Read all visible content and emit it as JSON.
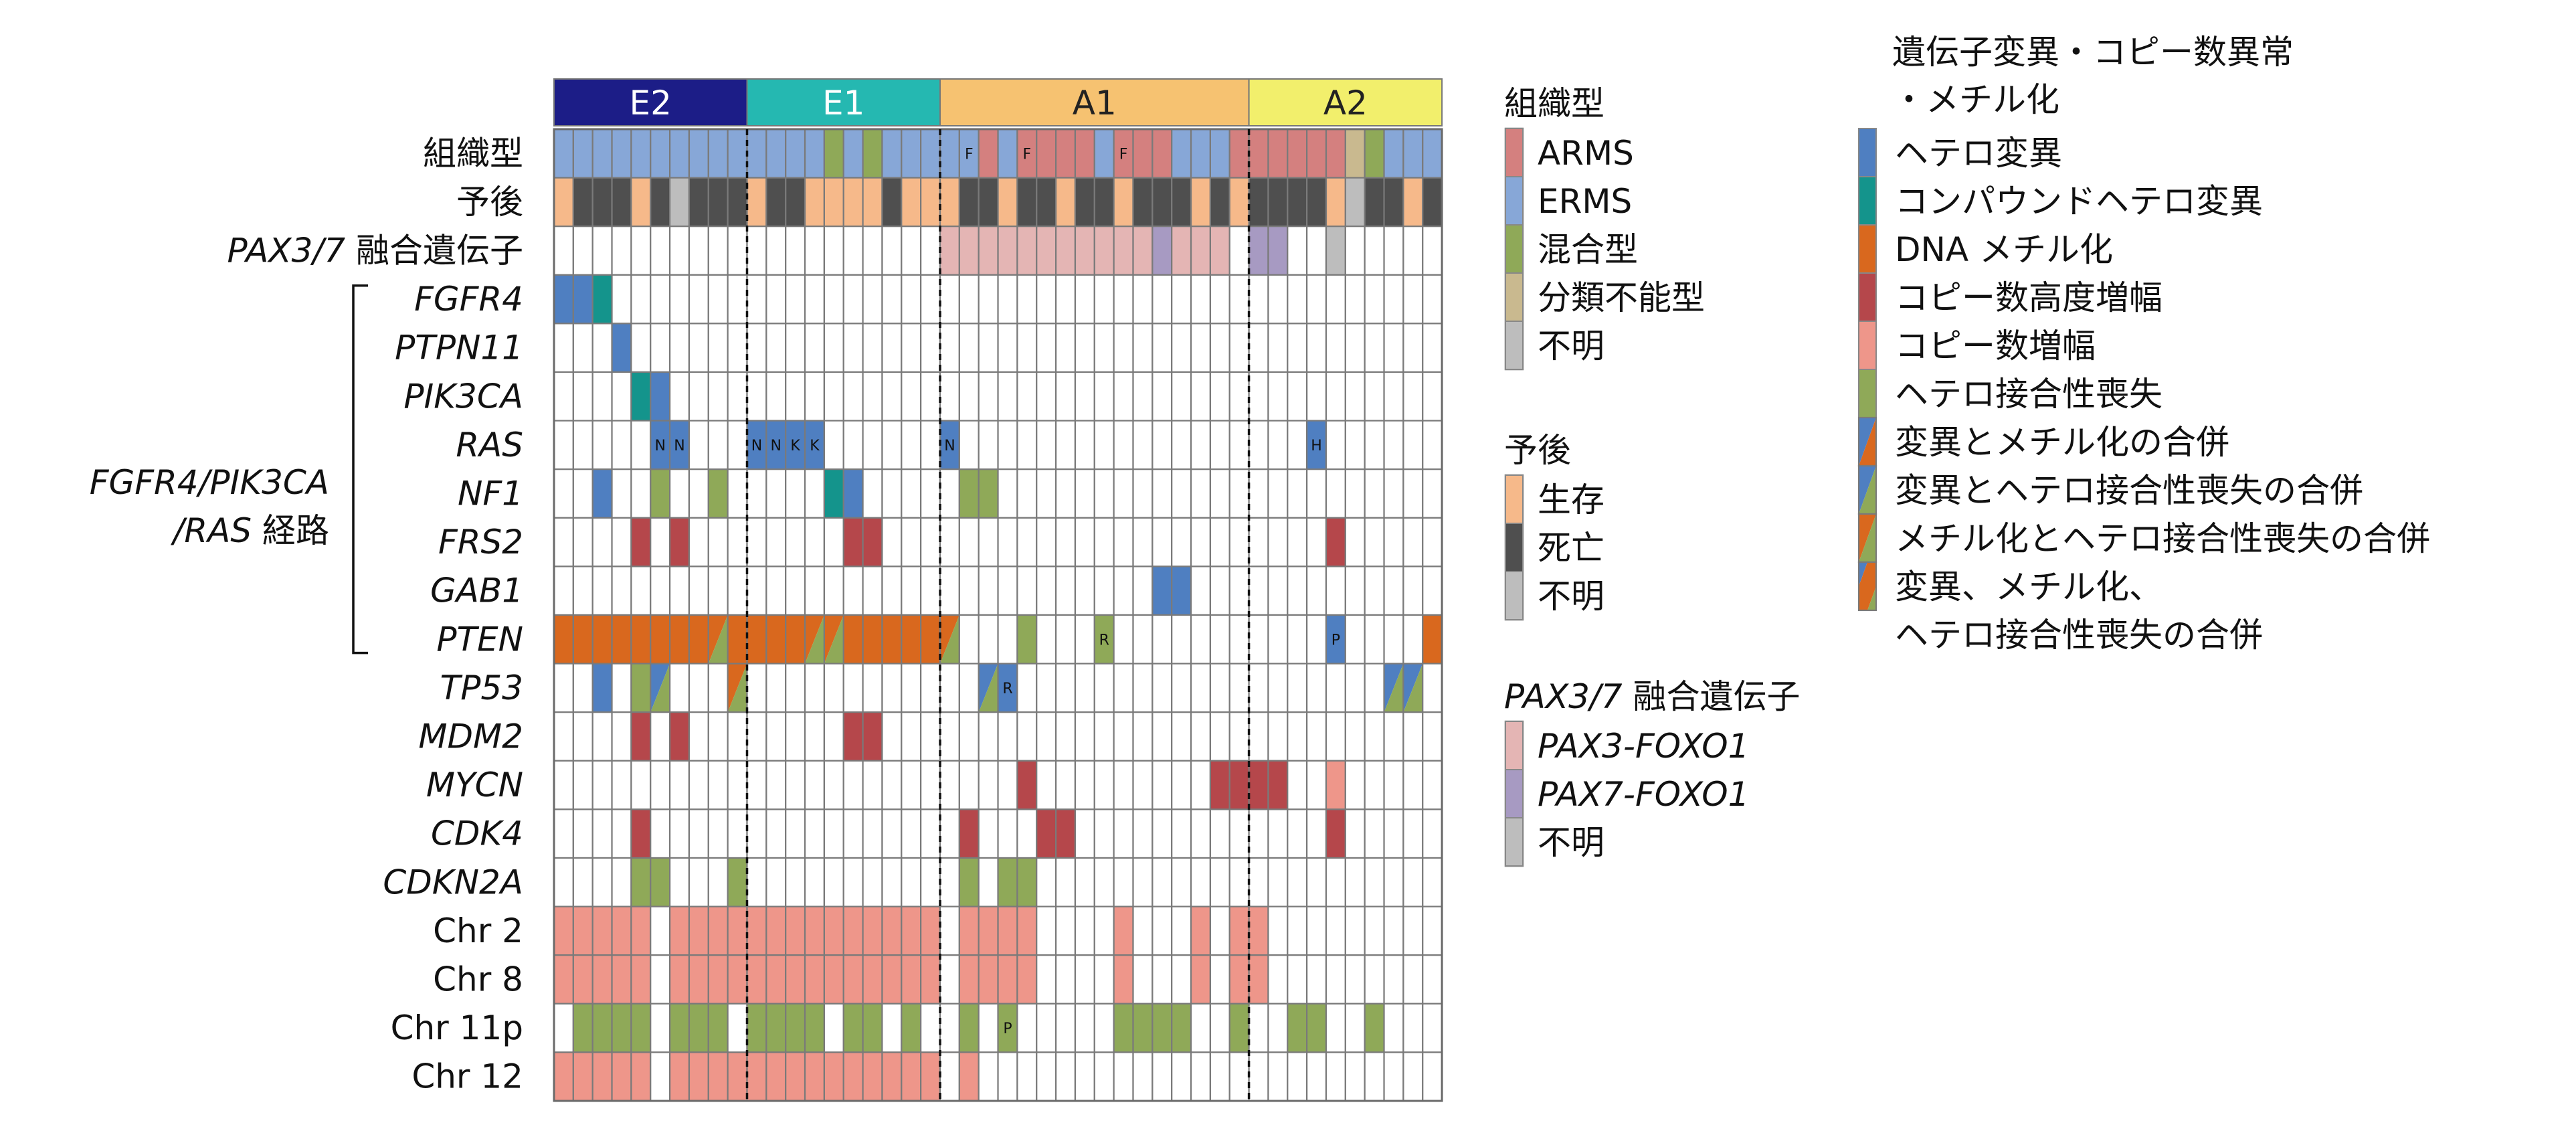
{
  "chart_data": {
    "type": "heatmap",
    "title": "",
    "n_samples": 46,
    "groups": [
      {
        "label": "E2",
        "start": 0,
        "count": 10,
        "color": "#1c1d87",
        "text_color": "#ffffff"
      },
      {
        "label": "E1",
        "start": 10,
        "count": 10,
        "color": "#25b8b1",
        "text_color": "#ffffff"
      },
      {
        "label": "A1",
        "start": 20,
        "count": 16,
        "color": "#f6c271",
        "text_color": "#222222"
      },
      {
        "label": "A2",
        "start": 36,
        "count": 10,
        "color": "#f2ef6c",
        "text_color": "#222222"
      }
    ],
    "rows": [
      {
        "label": "組織型",
        "italic_part": "",
        "plain_part": "組織型"
      },
      {
        "label": "予後",
        "italic_part": "",
        "plain_part": "予後"
      },
      {
        "label": "PAX3/7 融合遺伝子",
        "italic_part": "PAX3/7",
        "plain_part": " 融合遺伝子"
      },
      {
        "label": "FGFR4",
        "italic_part": "FGFR4",
        "plain_part": ""
      },
      {
        "label": "PTPN11",
        "italic_part": "PTPN11",
        "plain_part": ""
      },
      {
        "label": "PIK3CA",
        "italic_part": "PIK3CA",
        "plain_part": ""
      },
      {
        "label": "RAS",
        "italic_part": "RAS",
        "plain_part": ""
      },
      {
        "label": "NF1",
        "italic_part": "NF1",
        "plain_part": ""
      },
      {
        "label": "FRS2",
        "italic_part": "FRS2",
        "plain_part": ""
      },
      {
        "label": "GAB1",
        "italic_part": "GAB1",
        "plain_part": ""
      },
      {
        "label": "PTEN",
        "italic_part": "PTEN",
        "plain_part": ""
      },
      {
        "label": "TP53",
        "italic_part": "TP53",
        "plain_part": ""
      },
      {
        "label": "MDM2",
        "italic_part": "MDM2",
        "plain_part": ""
      },
      {
        "label": "MYCN",
        "italic_part": "MYCN",
        "plain_part": ""
      },
      {
        "label": "CDK4",
        "italic_part": "CDK4",
        "plain_part": ""
      },
      {
        "label": "CDKN2A",
        "italic_part": "CDKN2A",
        "plain_part": ""
      },
      {
        "label": "Chr 2",
        "italic_part": "",
        "plain_part": "Chr 2"
      },
      {
        "label": "Chr 8",
        "italic_part": "",
        "plain_part": "Chr 8"
      },
      {
        "label": "Chr 11p",
        "italic_part": "",
        "plain_part": "Chr 11p"
      },
      {
        "label": "Chr 12",
        "italic_part": "",
        "plain_part": "Chr 12"
      }
    ],
    "pathway_label_line1": "FGFR4/PIK3CA",
    "pathway_label_line2_italic": "/RAS",
    "pathway_label_line2_plain": " 経路",
    "codes": {
      "A": "#d4807f",
      "E": "#87a7d7",
      "M": "#8fa958",
      "U": "#c9b98f",
      "Q": "#bdbdbd",
      "S": "#f6b98a",
      "D": "#4f4f4f",
      "P3": "#e4b5b4",
      "P7": "#a79ac2",
      "h": "#4f7fc1",
      "c": "#14948c",
      "m": "#d9681e",
      "g": "#b5474b",
      "a": "#ee968a",
      "l": "#8fa958",
      "ml": "#d9681e|#8fa958",
      "hl": "#4f7fc1|#8fa958",
      "hm": "#4f7fc1|#d9681e"
    },
    "cells": [
      [
        "E",
        "E",
        "E",
        "E",
        "E",
        "E",
        "E",
        "E",
        "E",
        "E",
        "E",
        "E",
        "E",
        "E",
        "M",
        "E",
        "M",
        "E",
        "E",
        "E",
        "E",
        "E",
        "A",
        "E",
        "A",
        "A",
        "A",
        "A",
        "E",
        "A",
        "A",
        "A",
        "E",
        "E",
        "E",
        "A",
        "A",
        "A",
        "A",
        "A",
        "A",
        "U",
        "M",
        "E",
        "E",
        "E"
      ],
      [
        "S",
        "D",
        "D",
        "D",
        "S",
        "D",
        "Q",
        "D",
        "D",
        "D",
        "S",
        "D",
        "D",
        "S",
        "S",
        "S",
        "S",
        "D",
        "S",
        "S",
        "S",
        "D",
        "D",
        "S",
        "D",
        "D",
        "S",
        "D",
        "D",
        "S",
        "D",
        "D",
        "D",
        "S",
        "D",
        "S",
        "D",
        "D",
        "D",
        "D",
        "S",
        "Q",
        "D",
        "D",
        "S",
        "D"
      ],
      [
        "",
        "",
        "",
        "",
        "",
        "",
        "",
        "",
        "",
        "",
        "",
        "",
        "",
        "",
        "",
        "",
        "",
        "",
        "",
        "",
        "P3",
        "P3",
        "P3",
        "P3",
        "P3",
        "P3",
        "P3",
        "P3",
        "P3",
        "P3",
        "P3",
        "P7",
        "P3",
        "P3",
        "P3",
        "",
        "P7",
        "P7",
        "",
        "",
        "Q",
        "",
        "",
        "",
        "",
        ""
      ],
      [
        "h",
        "h",
        "c",
        "",
        "",
        "",
        "",
        "",
        "",
        "",
        "",
        "",
        "",
        "",
        "",
        "",
        "",
        "",
        "",
        "",
        "",
        "",
        "",
        "",
        "",
        "",
        "",
        "",
        "",
        "",
        "",
        "",
        "",
        "",
        "",
        "",
        "",
        "",
        "",
        "",
        "",
        "",
        "",
        "",
        "",
        ""
      ],
      [
        "",
        "",
        "",
        "h",
        "",
        "",
        "",
        "",
        "",
        "",
        "",
        "",
        "",
        "",
        "",
        "",
        "",
        "",
        "",
        "",
        "",
        "",
        "",
        "",
        "",
        "",
        "",
        "",
        "",
        "",
        "",
        "",
        "",
        "",
        "",
        "",
        "",
        "",
        "",
        "",
        "",
        "",
        "",
        "",
        "",
        ""
      ],
      [
        "",
        "",
        "",
        "",
        "c",
        "h",
        "",
        "",
        "",
        "",
        "",
        "",
        "",
        "",
        "",
        "",
        "",
        "",
        "",
        "",
        "",
        "",
        "",
        "",
        "",
        "",
        "",
        "",
        "",
        "",
        "",
        "",
        "",
        "",
        "",
        "",
        "",
        "",
        "",
        "",
        "",
        "",
        "",
        "",
        "",
        ""
      ],
      [
        "",
        "",
        "",
        "",
        "",
        "h",
        "h",
        "",
        "",
        "",
        "h",
        "h",
        "h",
        "h",
        "",
        "",
        "",
        "",
        "",
        "",
        "h",
        "",
        "",
        "",
        "",
        "",
        "",
        "",
        "",
        "",
        "",
        "",
        "",
        "",
        "",
        "",
        "",
        "",
        "",
        "h",
        "",
        "",
        "",
        "",
        "",
        ""
      ],
      [
        "",
        "",
        "h",
        "",
        "",
        "l",
        "",
        "",
        "l",
        "",
        "",
        "",
        "",
        "",
        "c",
        "h",
        "",
        "",
        "",
        "",
        "",
        "l",
        "l",
        "",
        "",
        "",
        "",
        "",
        "",
        "",
        "",
        "",
        "",
        "",
        "",
        "",
        "",
        "",
        "",
        "",
        "",
        "",
        "",
        "",
        "",
        ""
      ],
      [
        "",
        "",
        "",
        "",
        "g",
        "",
        "g",
        "",
        "",
        "",
        "",
        "",
        "",
        "",
        "",
        "g",
        "g",
        "",
        "",
        "",
        "",
        "",
        "",
        "",
        "",
        "",
        "",
        "",
        "",
        "",
        "",
        "",
        "",
        "",
        "",
        "",
        "",
        "",
        "",
        "",
        "g",
        "",
        "",
        "",
        "",
        ""
      ],
      [
        "",
        "",
        "",
        "",
        "",
        "",
        "",
        "",
        "",
        "",
        "",
        "",
        "",
        "",
        "",
        "",
        "",
        "",
        "",
        "",
        "",
        "",
        "",
        "",
        "",
        "",
        "",
        "",
        "",
        "",
        "",
        "h",
        "h",
        "",
        "",
        "",
        "",
        "",
        "",
        "",
        "",
        "",
        "",
        "",
        "",
        ""
      ],
      [
        "m",
        "m",
        "m",
        "m",
        "m",
        "m",
        "m",
        "m",
        "ml",
        "m",
        "m",
        "m",
        "m",
        "ml",
        "ml",
        "m",
        "m",
        "m",
        "m",
        "m",
        "ml",
        "",
        "",
        "",
        "l",
        "",
        "",
        "",
        "l",
        "",
        "",
        "",
        "",
        "",
        "",
        "",
        "",
        "",
        "",
        "",
        "h",
        "",
        "",
        "",
        "",
        "m"
      ],
      [
        "",
        "",
        "h",
        "",
        "l",
        "hl",
        "",
        "",
        "",
        "ml",
        "",
        "",
        "",
        "",
        "",
        "",
        "",
        "",
        "",
        "",
        "",
        "",
        "hl",
        "h",
        "",
        "",
        "",
        "",
        "",
        "",
        "",
        "",
        "",
        "",
        "",
        "",
        "",
        "",
        "",
        "",
        "",
        "",
        "",
        "hl",
        "hl",
        ""
      ],
      [
        "",
        "",
        "",
        "",
        "g",
        "",
        "g",
        "",
        "",
        "",
        "",
        "",
        "",
        "",
        "",
        "g",
        "g",
        "",
        "",
        "",
        "",
        "",
        "",
        "",
        "",
        "",
        "",
        "",
        "",
        "",
        "",
        "",
        "",
        "",
        "",
        "",
        "",
        "",
        "",
        "",
        "",
        "",
        "",
        "",
        "",
        ""
      ],
      [
        "",
        "",
        "",
        "",
        "",
        "",
        "",
        "",
        "",
        "",
        "",
        "",
        "",
        "",
        "",
        "",
        "",
        "",
        "",
        "",
        "",
        "",
        "",
        "",
        "g",
        "",
        "",
        "",
        "",
        "",
        "",
        "",
        "",
        "",
        "g",
        "g",
        "g",
        "g",
        "",
        "",
        "a",
        "",
        "",
        "",
        "",
        ""
      ],
      [
        "",
        "",
        "",
        "",
        "g",
        "",
        "",
        "",
        "",
        "",
        "",
        "",
        "",
        "",
        "",
        "",
        "",
        "",
        "",
        "",
        "",
        "g",
        "",
        "",
        "",
        "g",
        "g",
        "",
        "",
        "",
        "",
        "",
        "",
        "",
        "",
        "",
        "",
        "",
        "",
        "",
        "g",
        "",
        "",
        "",
        "",
        ""
      ],
      [
        "",
        "",
        "",
        "",
        "l",
        "l",
        "",
        "",
        "",
        "l",
        "",
        "",
        "",
        "",
        "",
        "",
        "",
        "",
        "",
        "",
        "",
        "l",
        "",
        "l",
        "l",
        "",
        "",
        "",
        "",
        "",
        "",
        "",
        "",
        "",
        "",
        "",
        "",
        "",
        "",
        "",
        "",
        "",
        "",
        "",
        "",
        ""
      ],
      [
        "a",
        "a",
        "a",
        "a",
        "a",
        "",
        "a",
        "a",
        "a",
        "a",
        "a",
        "a",
        "a",
        "a",
        "a",
        "a",
        "a",
        "a",
        "a",
        "a",
        "",
        "a",
        "a",
        "a",
        "a",
        "",
        "",
        "",
        "",
        "a",
        "",
        "",
        "",
        "a",
        "",
        "a",
        "a",
        "",
        "",
        "",
        "",
        "",
        "",
        "",
        "",
        ""
      ],
      [
        "a",
        "a",
        "a",
        "a",
        "a",
        "",
        "a",
        "a",
        "a",
        "a",
        "a",
        "a",
        "a",
        "a",
        "a",
        "a",
        "a",
        "a",
        "a",
        "a",
        "",
        "a",
        "a",
        "a",
        "a",
        "",
        "",
        "",
        "",
        "a",
        "",
        "",
        "",
        "a",
        "",
        "a",
        "a",
        "",
        "",
        "",
        "",
        "",
        "",
        "",
        "",
        ""
      ],
      [
        "",
        "l",
        "l",
        "l",
        "l",
        "",
        "l",
        "l",
        "l",
        "",
        "l",
        "l",
        "l",
        "l",
        "",
        "l",
        "l",
        "",
        "l",
        "",
        "",
        "l",
        "",
        "l",
        "",
        "",
        "",
        "",
        "",
        "l",
        "l",
        "l",
        "l",
        "",
        "",
        "l",
        "",
        "",
        "l",
        "l",
        "",
        "",
        "l",
        "",
        "",
        ""
      ],
      [
        "a",
        "a",
        "a",
        "a",
        "a",
        "",
        "a",
        "a",
        "a",
        "a",
        "a",
        "a",
        "a",
        "a",
        "a",
        "a",
        "a",
        "a",
        "a",
        "a",
        "",
        "a",
        "",
        "",
        "",
        "",
        "",
        "",
        "",
        "",
        "",
        "",
        "",
        "",
        "",
        "",
        "",
        "",
        "",
        "",
        "",
        "",
        "",
        "",
        "",
        ""
      ]
    ],
    "marks": [
      {
        "row": 0,
        "col": 21,
        "text": "F"
      },
      {
        "row": 0,
        "col": 24,
        "text": "F"
      },
      {
        "row": 0,
        "col": 29,
        "text": "F"
      },
      {
        "row": 6,
        "col": 5,
        "text": "N"
      },
      {
        "row": 6,
        "col": 6,
        "text": "N"
      },
      {
        "row": 6,
        "col": 10,
        "text": "N"
      },
      {
        "row": 6,
        "col": 11,
        "text": "N"
      },
      {
        "row": 6,
        "col": 12,
        "text": "K"
      },
      {
        "row": 6,
        "col": 13,
        "text": "K"
      },
      {
        "row": 6,
        "col": 20,
        "text": "N"
      },
      {
        "row": 6,
        "col": 39,
        "text": "H"
      },
      {
        "row": 10,
        "col": 28,
        "text": "R"
      },
      {
        "row": 10,
        "col": 40,
        "text": "P"
      },
      {
        "row": 11,
        "col": 23,
        "text": "R"
      },
      {
        "row": 18,
        "col": 23,
        "text": "P"
      }
    ]
  },
  "legends": {
    "histology": {
      "title": "組織型",
      "items": [
        {
          "label": "ARMS",
          "color": "#d4807f"
        },
        {
          "label": "ERMS",
          "color": "#87a7d7"
        },
        {
          "label": "混合型",
          "color": "#8fa958"
        },
        {
          "label": "分類不能型",
          "color": "#c9b98f"
        },
        {
          "label": "不明",
          "color": "#bdbdbd"
        }
      ]
    },
    "prognosis": {
      "title": "予後",
      "items": [
        {
          "label": "生存",
          "color": "#f6b98a"
        },
        {
          "label": "死亡",
          "color": "#4f4f4f"
        },
        {
          "label": "不明",
          "color": "#bdbdbd"
        }
      ]
    },
    "fusion": {
      "title_italic": "PAX3/7",
      "title_plain": " 融合遺伝子",
      "items": [
        {
          "label": "PAX3-FOXO1",
          "italic": true,
          "color": "#e4b5b4"
        },
        {
          "label": "PAX7-FOXO1",
          "italic": true,
          "color": "#a79ac2"
        },
        {
          "label": "不明",
          "italic": false,
          "color": "#bdbdbd"
        }
      ]
    },
    "alteration": {
      "title_line1": "遺伝子変異・コピー数異常",
      "title_line2": "・メチル化",
      "items": [
        {
          "label": "ヘテロ変異",
          "colors": [
            "#4f7fc1"
          ]
        },
        {
          "label": "コンパウンドヘテロ変異",
          "colors": [
            "#14948c"
          ]
        },
        {
          "label": "DNA メチル化",
          "colors": [
            "#d9681e"
          ]
        },
        {
          "label": "コピー数高度増幅",
          "colors": [
            "#b5474b"
          ]
        },
        {
          "label": "コピー数増幅",
          "colors": [
            "#ee968a"
          ]
        },
        {
          "label": "ヘテロ接合性喪失",
          "colors": [
            "#8fa958"
          ]
        },
        {
          "label": "変異とメチル化の合併",
          "colors": [
            "#4f7fc1",
            "#d9681e"
          ]
        },
        {
          "label": "変異とヘテロ接合性喪失の合併",
          "colors": [
            "#4f7fc1",
            "#8fa958"
          ]
        },
        {
          "label": "メチル化とヘテロ接合性喪失の合併",
          "colors": [
            "#d9681e",
            "#8fa958"
          ]
        },
        {
          "label": "変異、メチル化、",
          "label2": "ヘテロ接合性喪失の合併",
          "colors": [
            "#4f7fc1",
            "#d9681e",
            "#8fa958"
          ]
        }
      ]
    }
  }
}
